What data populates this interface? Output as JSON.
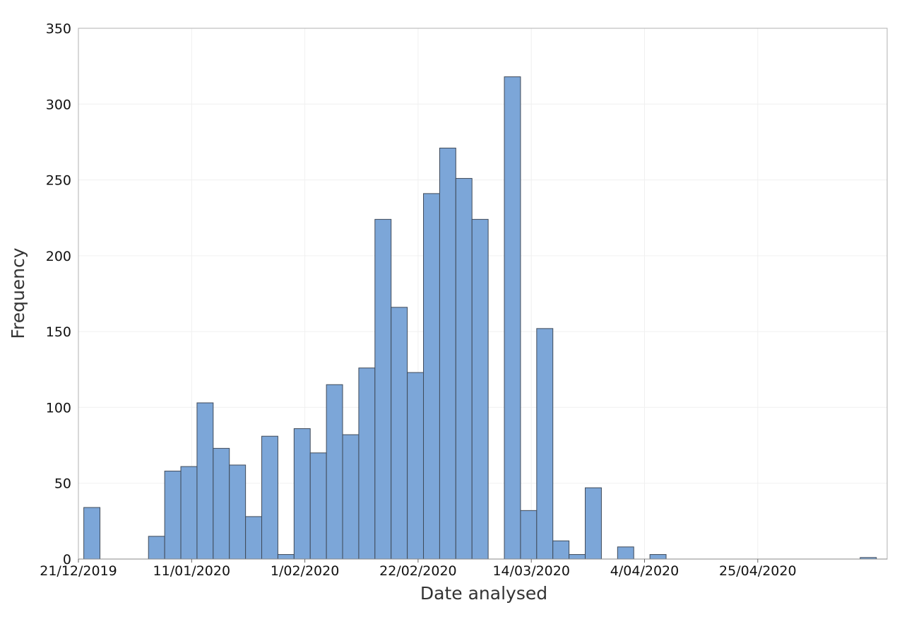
{
  "chart_data": {
    "type": "bar",
    "subtype": "histogram",
    "xlabel": "Date analysed",
    "ylabel": "Frequency",
    "ylim": [
      0,
      350
    ],
    "yticks": [
      0,
      50,
      100,
      150,
      200,
      250,
      300,
      350
    ],
    "xlim": [
      "2019-12-21",
      "2020-05-19"
    ],
    "xticks": [
      {
        "date": "2019-12-21",
        "label": "21/12/2019"
      },
      {
        "date": "2020-01-11",
        "label": "11/01/2020"
      },
      {
        "date": "2020-02-01",
        "label": "1/02/2020"
      },
      {
        "date": "2020-02-22",
        "label": "22/02/2020"
      },
      {
        "date": "2020-03-14",
        "label": "14/03/2020"
      },
      {
        "date": "2020-04-04",
        "label": "4/04/2020"
      },
      {
        "date": "2020-04-25",
        "label": "25/04/2020"
      }
    ],
    "bin_width_days": 3,
    "bin_starts": [
      "2019-12-22",
      "2019-12-25",
      "2019-12-28",
      "2019-12-31",
      "2020-01-03",
      "2020-01-06",
      "2020-01-09",
      "2020-01-12",
      "2020-01-15",
      "2020-01-18",
      "2020-01-21",
      "2020-01-24",
      "2020-01-27",
      "2020-01-30",
      "2020-02-02",
      "2020-02-05",
      "2020-02-08",
      "2020-02-11",
      "2020-02-14",
      "2020-02-17",
      "2020-02-20",
      "2020-02-23",
      "2020-02-26",
      "2020-02-29",
      "2020-03-03",
      "2020-03-06",
      "2020-03-09",
      "2020-03-12",
      "2020-03-15",
      "2020-03-18",
      "2020-03-21",
      "2020-03-24",
      "2020-03-27",
      "2020-03-30",
      "2020-04-02",
      "2020-04-05",
      "2020-04-08",
      "2020-04-11",
      "2020-04-14",
      "2020-04-17",
      "2020-04-20",
      "2020-04-23",
      "2020-04-26",
      "2020-04-29",
      "2020-05-02",
      "2020-05-05",
      "2020-05-08",
      "2020-05-11",
      "2020-05-14"
    ],
    "values": [
      34,
      0,
      0,
      0,
      15,
      58,
      61,
      103,
      73,
      62,
      28,
      81,
      3,
      86,
      70,
      115,
      82,
      126,
      224,
      166,
      123,
      241,
      271,
      251,
      224,
      0,
      318,
      32,
      152,
      12,
      3,
      47,
      0,
      8,
      0,
      3,
      0,
      0,
      0,
      0,
      0,
      0,
      0,
      0,
      0,
      0,
      0,
      0,
      1
    ],
    "colors": {
      "bar_fill": "#7ca6d8",
      "bar_edge": "#3f4a59",
      "grid": "#f0f0f0",
      "frame": "#b0b0b0"
    },
    "grid": true,
    "legend": "none"
  }
}
